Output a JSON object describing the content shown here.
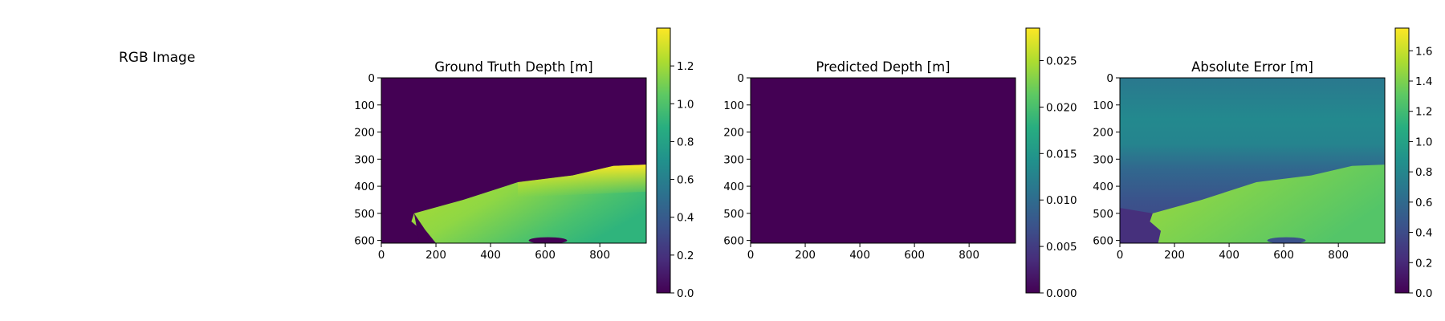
{
  "panels": {
    "rgb": {
      "title": "RGB Image"
    }
  },
  "chart_data": [
    {
      "type": "heatmap",
      "title": "Ground Truth Depth [m]",
      "xlim": [
        0,
        970
      ],
      "ylim": [
        610,
        0
      ],
      "x_ticks": [
        0,
        200,
        400,
        600,
        800
      ],
      "y_ticks": [
        0,
        100,
        200,
        300,
        400,
        500,
        600
      ],
      "colormap": "viridis",
      "colorbar": {
        "range": [
          0,
          1.4
        ],
        "ticks": [
          0.0,
          0.2,
          0.4,
          0.6,
          0.8,
          1.0,
          1.2
        ]
      },
      "content": {
        "background_value": 0.0,
        "region_boundary": [
          [
            120,
            500
          ],
          [
            300,
            450
          ],
          [
            500,
            385
          ],
          [
            700,
            360
          ],
          [
            850,
            325
          ],
          [
            970,
            320
          ]
        ],
        "value_near_edge": 1.35,
        "value_far": 0.95
      }
    },
    {
      "type": "heatmap",
      "title": "Predicted Depth [m]",
      "xlim": [
        0,
        970
      ],
      "ylim": [
        610,
        0
      ],
      "x_ticks": [
        0,
        200,
        400,
        600,
        800
      ],
      "y_ticks": [
        0,
        100,
        200,
        300,
        400,
        500,
        600
      ],
      "colormap": "viridis",
      "colorbar": {
        "range": [
          0,
          0.0285
        ],
        "ticks": [
          0.0,
          0.005,
          0.01,
          0.015,
          0.02,
          0.025
        ]
      },
      "content": {
        "uniform_value": 0.0
      }
    },
    {
      "type": "heatmap",
      "title": "Absolute Error [m]",
      "xlim": [
        0,
        970
      ],
      "ylim": [
        610,
        0
      ],
      "x_ticks": [
        0,
        200,
        400,
        600,
        800
      ],
      "y_ticks": [
        0,
        100,
        200,
        300,
        400,
        500,
        600
      ],
      "colormap": "viridis",
      "colorbar": {
        "range": [
          0,
          1.75
        ],
        "ticks": [
          0.0,
          0.2,
          0.4,
          0.6,
          0.8,
          1.0,
          1.2,
          1.4,
          1.6
        ]
      },
      "content": {
        "top_value": 1.0,
        "band_value": 0.85,
        "lower_value": 0.55,
        "region_value": 1.45
      }
    }
  ]
}
